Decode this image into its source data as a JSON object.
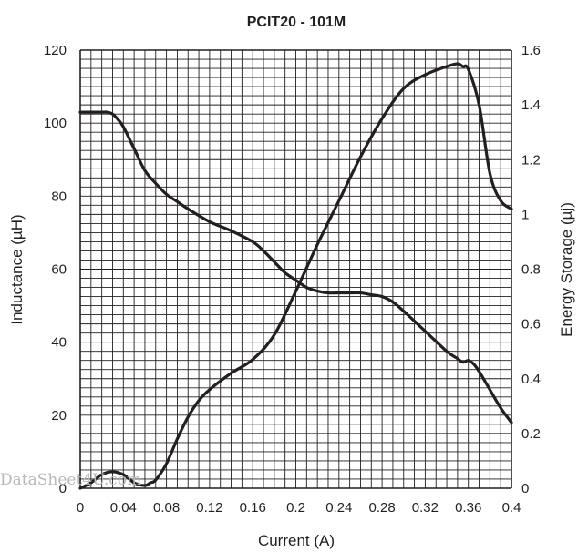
{
  "chart_data": {
    "type": "line",
    "title": "PCIT20 - 101M",
    "xlabel": "Current (A)",
    "ylabel": "Inductance (µH)",
    "y2label": "Energy Storage (µj)",
    "xlim": [
      0,
      0.4
    ],
    "ylim": [
      0,
      120
    ],
    "y2lim": [
      0,
      1.6
    ],
    "x_ticks": [
      "0",
      "0.04",
      "0.08",
      "0.12",
      "0.16",
      "0.2",
      "0.24",
      "0.28",
      "0.32",
      "0.36",
      "0.4"
    ],
    "y_ticks": [
      "0",
      "20",
      "40",
      "60",
      "80",
      "100",
      "120"
    ],
    "y2_ticks": [
      "0",
      "0.2",
      "0.4",
      "0.6",
      "0.8",
      "1",
      "1.2",
      "1.4",
      "1.6"
    ],
    "grid": true,
    "series": [
      {
        "axis": "left",
        "x": [
          0,
          0.01,
          0.02,
          0.025,
          0.03,
          0.035,
          0.04,
          0.05,
          0.06,
          0.07,
          0.08,
          0.09,
          0.1,
          0.12,
          0.14,
          0.16,
          0.17,
          0.18,
          0.19,
          0.2,
          0.21,
          0.22,
          0.23,
          0.24,
          0.25,
          0.26,
          0.27,
          0.28,
          0.29,
          0.3,
          0.32,
          0.34,
          0.35,
          0.355,
          0.36,
          0.365,
          0.37,
          0.38,
          0.39,
          0.4
        ],
        "values": [
          103,
          103,
          103,
          103,
          102.5,
          101,
          99,
          93,
          87,
          83.5,
          80.5,
          78.5,
          76.5,
          73,
          70.5,
          67.5,
          65,
          62,
          59,
          57,
          55,
          54,
          53.5,
          53.5,
          53.5,
          53.5,
          53,
          52.5,
          51,
          48.5,
          43,
          37.5,
          35.5,
          34.5,
          35,
          34,
          32,
          27,
          22,
          18
        ]
      },
      {
        "axis": "right",
        "x": [
          0,
          0.01,
          0.02,
          0.03,
          0.04,
          0.05,
          0.06,
          0.065,
          0.07,
          0.08,
          0.09,
          0.1,
          0.11,
          0.12,
          0.14,
          0.16,
          0.18,
          0.2,
          0.22,
          0.24,
          0.26,
          0.28,
          0.3,
          0.32,
          0.34,
          0.35,
          0.355,
          0.36,
          0.37,
          0.38,
          0.39,
          0.4
        ],
        "values": [
          0,
          0.02,
          0.05,
          0.06,
          0.05,
          0.02,
          0.01,
          0.02,
          0.03,
          0.09,
          0.18,
          0.26,
          0.32,
          0.36,
          0.42,
          0.47,
          0.56,
          0.72,
          0.89,
          1.05,
          1.21,
          1.35,
          1.46,
          1.51,
          1.54,
          1.55,
          1.54,
          1.53,
          1.4,
          1.15,
          1.05,
          1.02
        ]
      }
    ]
  },
  "watermark": "DataSheet4U.com"
}
